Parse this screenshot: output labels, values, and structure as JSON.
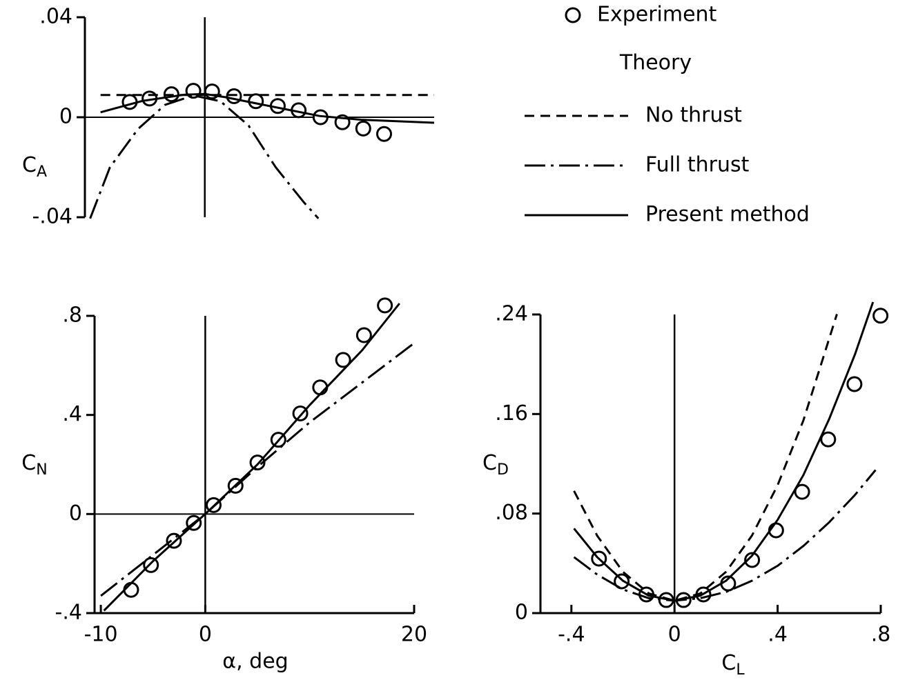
{
  "chart_data": [
    {
      "type": "line",
      "ylabel": "CA",
      "xlim": [
        -11.5,
        22
      ],
      "ylim": [
        -0.04,
        0.04
      ],
      "yticks": [
        {
          "value": 0.04,
          "label": ".04"
        },
        0,
        {
          "value": -0.04,
          "label": "-.04"
        }
      ],
      "legend_title": "Theory",
      "series": [
        {
          "name": "Experiment",
          "kind": "scatter",
          "marker": "circle",
          "color": "#000000",
          "x": [
            -7.2,
            -5.3,
            -3.2,
            -1.1,
            0.7,
            2.8,
            4.9,
            7.0,
            9.0,
            11.1,
            13.2,
            15.2,
            17.2
          ],
          "values": [
            0.0061,
            0.0075,
            0.0092,
            0.0106,
            0.0103,
            0.0084,
            0.0064,
            0.0045,
            0.0028,
            0,
            -0.002,
            -0.0045,
            -0.0067
          ]
        },
        {
          "name": "No thrust",
          "kind": "line",
          "dash": "dashed",
          "color": "#000000",
          "x": [
            -10,
            22
          ],
          "values": [
            0.0089,
            0.0089
          ]
        },
        {
          "name": "Full thrust",
          "kind": "line",
          "dash": "dashdot",
          "color": "#000000",
          "x": [
            -11,
            -9.1,
            -6.4,
            -3.8,
            -1.1,
            1.5,
            4.2,
            6.8,
            9.5,
            10.9
          ],
          "values": [
            -0.0405,
            -0.02,
            -0.0047,
            0.005,
            0.0087,
            0.0064,
            -0.0033,
            -0.02,
            -0.034,
            -0.0405
          ]
        },
        {
          "name": "Present method",
          "kind": "line",
          "dash": "solid",
          "color": "#000000",
          "x": [
            -10,
            -6,
            -2,
            0,
            2,
            5,
            8,
            11,
            15,
            22
          ],
          "values": [
            0.002,
            0.0065,
            0.009,
            0.0093,
            0.008,
            0.0055,
            0.003,
            0.0005,
            -0.001,
            -0.0022
          ]
        }
      ]
    },
    {
      "type": "line",
      "ylabel": "CN",
      "xlabel": "α, deg",
      "xlim": [
        -10.6,
        20
      ],
      "ylim": [
        -0.4,
        0.8
      ],
      "xticks": [
        -10,
        0,
        20
      ],
      "yticks": [
        {
          "value": 0.8,
          "label": ".8"
        },
        {
          "value": 0.4,
          "label": ".4"
        },
        0,
        {
          "value": -0.4,
          "label": "-.4"
        }
      ],
      "series": [
        {
          "kind": "scatter",
          "marker": "circle",
          "color": "#000000",
          "x": [
            -7.1,
            -5.2,
            -3.0,
            -1.1,
            0.8,
            2.9,
            5.0,
            7.0,
            9.1,
            11.0,
            13.2,
            15.2,
            17.2
          ],
          "values": [
            -0.306,
            -0.206,
            -0.108,
            -0.036,
            0.036,
            0.114,
            0.208,
            0.3,
            0.406,
            0.511,
            0.622,
            0.722,
            0.842
          ]
        },
        {
          "kind": "line",
          "dash": "dashdot",
          "color": "#000000",
          "x": [
            -10,
            0,
            5,
            10,
            15,
            20
          ],
          "values": [
            -0.33,
            0,
            0.19,
            0.37,
            0.53,
            0.69
          ]
        },
        {
          "kind": "line",
          "dash": "solid",
          "color": "#000000",
          "x": [
            -9.7,
            -5,
            0,
            5,
            10,
            15,
            18.6
          ],
          "values": [
            -0.39,
            -0.19,
            0,
            0.2,
            0.44,
            0.66,
            0.85
          ]
        }
      ]
    },
    {
      "type": "line",
      "ylabel": "CD",
      "xlabel": "CL",
      "xlim": [
        -0.52,
        0.8
      ],
      "ylim": [
        0,
        0.24
      ],
      "xticks": [
        {
          "value": -0.4,
          "label": "-.4"
        },
        0,
        {
          "value": 0.4,
          "label": ".4"
        },
        {
          "value": 0.8,
          "label": ".8"
        }
      ],
      "yticks": [
        {
          "value": 0.24,
          "label": ".24"
        },
        {
          "value": 0.16,
          "label": ".16"
        },
        {
          "value": 0.08,
          "label": ".08"
        },
        0
      ],
      "series": [
        {
          "kind": "scatter",
          "marker": "circle",
          "color": "#000000",
          "x": [
            -0.293,
            -0.205,
            -0.109,
            -0.032,
            0.035,
            0.112,
            0.208,
            0.301,
            0.394,
            0.495,
            0.596,
            0.698,
            0.799
          ],
          "values": [
            0.0438,
            0.0255,
            0.015,
            0.0105,
            0.0105,
            0.015,
            0.0238,
            0.0427,
            0.0665,
            0.0975,
            0.1396,
            0.184,
            0.239
          ]
        },
        {
          "kind": "line",
          "dash": "dashed",
          "color": "#000000",
          "x": [
            -0.39,
            -0.3,
            -0.2,
            -0.1,
            0,
            0.1,
            0.2,
            0.3,
            0.4,
            0.5,
            0.63
          ],
          "values": [
            0.0982,
            0.0622,
            0.0332,
            0.0158,
            0.01,
            0.0158,
            0.0332,
            0.0622,
            0.1028,
            0.155,
            0.2403
          ]
        },
        {
          "kind": "line",
          "dash": "dashdot",
          "color": "#000000",
          "x": [
            -0.39,
            -0.3,
            -0.2,
            -0.1,
            0,
            0.1,
            0.2,
            0.3,
            0.4,
            0.5,
            0.6,
            0.7,
            0.78
          ],
          "values": [
            0.045,
            0.031,
            0.019,
            0.012,
            0.01,
            0.012,
            0.017,
            0.026,
            0.038,
            0.054,
            0.073,
            0.095,
            0.115
          ]
        },
        {
          "kind": "line",
          "dash": "solid",
          "color": "#000000",
          "x": [
            -0.39,
            -0.3,
            -0.2,
            -0.1,
            0,
            0.1,
            0.2,
            0.3,
            0.4,
            0.5,
            0.6,
            0.7,
            0.77
          ],
          "values": [
            0.068,
            0.045,
            0.026,
            0.014,
            0.01,
            0.014,
            0.026,
            0.046,
            0.075,
            0.111,
            0.156,
            0.208,
            0.25
          ]
        }
      ]
    }
  ]
}
